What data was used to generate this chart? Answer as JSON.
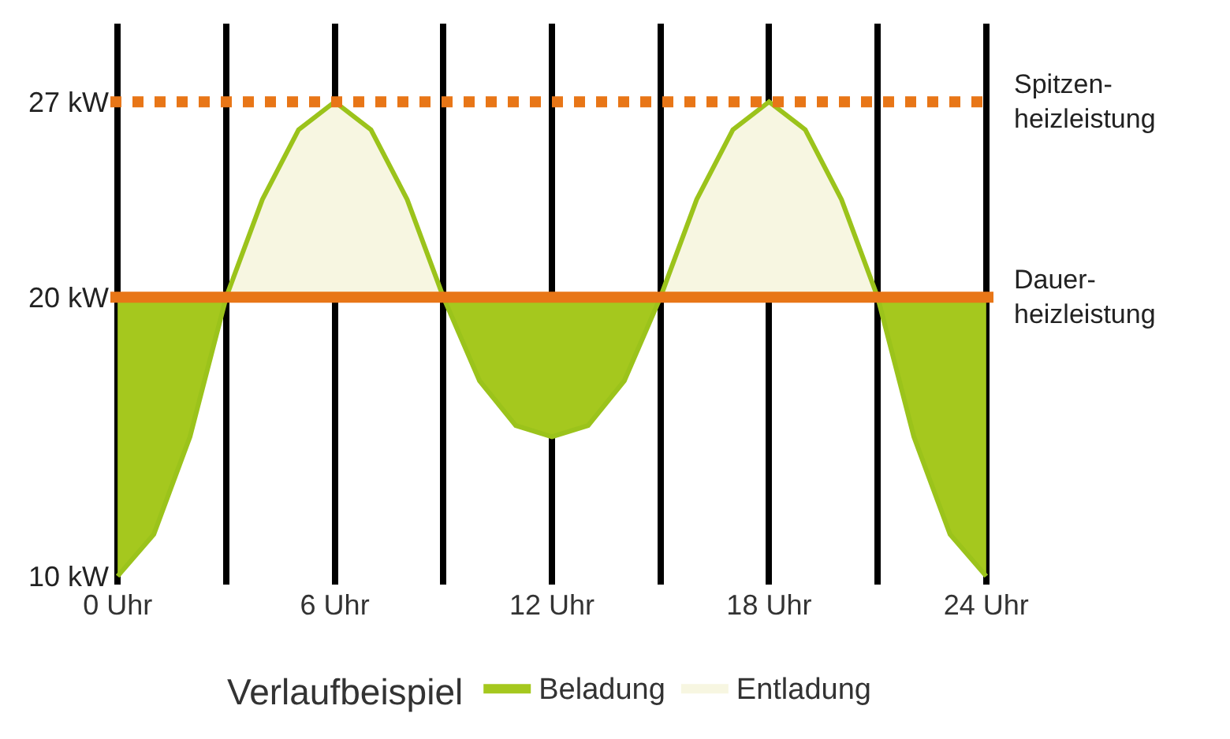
{
  "chart_data": {
    "type": "area",
    "x": [
      0,
      1,
      2,
      3,
      4,
      5,
      6,
      7,
      8,
      9,
      10,
      11,
      12,
      13,
      14,
      15,
      16,
      17,
      18,
      19,
      20,
      21,
      22,
      23,
      24
    ],
    "series": [
      {
        "type": "line",
        "color": "#9bc31b",
        "values": [
          10,
          11.5,
          15,
          20,
          23.5,
          26,
          27,
          26,
          23.5,
          20,
          17,
          15.4,
          15,
          15.4,
          17,
          20,
          23.5,
          26,
          27,
          26,
          23.5,
          20,
          15,
          11.5,
          10
        ]
      },
      {
        "name": "Beladung",
        "color": "#a5c81e",
        "x": [
          0,
          0,
          1,
          2,
          3,
          4,
          9,
          10,
          11,
          12,
          13,
          14,
          15,
          20,
          21,
          22,
          23,
          24,
          24
        ],
        "values": [
          20,
          10,
          11.5,
          15,
          20,
          null,
          20,
          17,
          15.4,
          15,
          15.4,
          17,
          20,
          null,
          20,
          15,
          11.5,
          10,
          20
        ]
      },
      {
        "name": "Entladung",
        "color": "#f7f6e1",
        "x": [
          3,
          4,
          5,
          6,
          7,
          8,
          9,
          10,
          15,
          16,
          17,
          18,
          19,
          20,
          21
        ],
        "values": [
          20,
          23.5,
          26,
          27,
          26,
          23.5,
          20,
          null,
          20,
          23.5,
          26,
          27,
          26,
          23.5,
          20
        ]
      }
    ],
    "ref_lines": [
      {
        "axis": "y",
        "value": 27,
        "label": "Spitzen-\nheizleistung",
        "color": "#e87617",
        "line_style": "dotted"
      },
      {
        "axis": "y",
        "value": 20,
        "label": "Dauer-\nheizleistung",
        "color": "#e87617",
        "line_style": "solid"
      }
    ],
    "xlim": [
      -0.2,
      24.2
    ],
    "ylim": [
      9.7,
      29.8
    ],
    "xticks": [
      {
        "value": 0,
        "label": "0 Uhr"
      },
      {
        "value": 3,
        "label": null
      },
      {
        "value": 6,
        "label": "6 Uhr"
      },
      {
        "value": 9,
        "label": null
      },
      {
        "value": 12,
        "label": "12 Uhr"
      },
      {
        "value": 15,
        "label": null
      },
      {
        "value": 18,
        "label": "18 Uhr"
      },
      {
        "value": 21,
        "label": null
      },
      {
        "value": 24,
        "label": "24 Uhr"
      }
    ],
    "yticks": [
      {
        "value": 10,
        "label": "10 kW"
      },
      {
        "value": 20,
        "label": "20 kW"
      },
      {
        "value": 27,
        "label": "27 kW"
      }
    ],
    "grid": "x",
    "legend": "bottom",
    "legend_title": "Verlaufbeispiel"
  }
}
